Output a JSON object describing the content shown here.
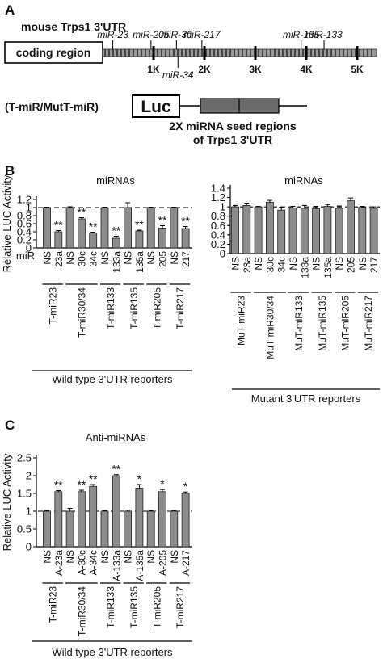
{
  "panel_labels": {
    "a": "A",
    "b": "B",
    "c": "C"
  },
  "schematic": {
    "title": "mouse Trps1 3'UTR",
    "coding_region": "coding region",
    "mirna_sites": [
      {
        "label": "miR-23",
        "pos_kb": 0.2,
        "above": true
      },
      {
        "label": "miR-205",
        "pos_kb": 0.95,
        "above": true
      },
      {
        "label": "miR-30",
        "pos_kb": 1.45,
        "above": true
      },
      {
        "label": "miR-217",
        "pos_kb": 1.95,
        "above": true
      },
      {
        "label": "miR-34",
        "pos_kb": 1.48,
        "above": false
      },
      {
        "label": "miR-135",
        "pos_kb": 3.9,
        "above": true
      },
      {
        "label": "miR-133",
        "pos_kb": 4.35,
        "above": true
      }
    ],
    "kb_ticks": [
      "1K",
      "2K",
      "3K",
      "4K",
      "5K"
    ],
    "construct_label": "(T-miR/MutT-miR)",
    "luc_label": "Luc",
    "seed_caption_1": "2X miRNA seed regions",
    "seed_caption_2": "of Trps1 3'UTR"
  },
  "chart_data": [
    {
      "type": "bar",
      "panel": "B-left",
      "title": "miRNAs",
      "ylabel": "Relative LUC Activity",
      "row_label": "miR",
      "ylim": [
        0,
        1.2
      ],
      "yticks": [
        "0",
        "0.2",
        "0.4",
        "0.6",
        "0.8",
        "1",
        "1.2"
      ],
      "reference_line": 1,
      "categories": [
        "NS",
        "23a",
        "NS",
        "30c",
        "34c",
        "NS",
        "133a",
        "NS",
        "135a",
        "NS",
        "205",
        "NS",
        "217"
      ],
      "values": [
        1.0,
        0.4,
        1.0,
        0.72,
        0.37,
        1.0,
        0.24,
        1.0,
        0.42,
        1.0,
        0.49,
        1.0,
        0.48
      ],
      "errors": [
        0.01,
        0.03,
        0.02,
        0.03,
        0.02,
        0.01,
        0.05,
        0.12,
        0.02,
        0.01,
        0.06,
        0.01,
        0.05
      ],
      "significance": [
        "",
        "**",
        "",
        "**",
        "**",
        "",
        "**",
        "",
        "**",
        "",
        "**",
        "",
        "**"
      ],
      "groups": [
        {
          "label": "T-miR23",
          "span": [
            0,
            1
          ]
        },
        {
          "label": "T-miR30/34",
          "span": [
            2,
            4
          ]
        },
        {
          "label": "T-miR133",
          "span": [
            5,
            6
          ]
        },
        {
          "label": "T-miR135",
          "span": [
            7,
            8
          ]
        },
        {
          "label": "T-miR205",
          "span": [
            9,
            10
          ]
        },
        {
          "label": "T-miR217",
          "span": [
            11,
            12
          ]
        }
      ],
      "footer": "Wild type 3'UTR reporters"
    },
    {
      "type": "bar",
      "panel": "B-right",
      "title": "miRNAs",
      "ylim": [
        0,
        1.4
      ],
      "yticks": [
        "0",
        "0.2",
        "0.4",
        "0.6",
        "0.8",
        "1",
        "1.2",
        "1.4"
      ],
      "reference_line": 1,
      "categories": [
        "NS",
        "23a",
        "NS",
        "30c",
        "34c",
        "NS",
        "133a",
        "NS",
        "135a",
        "NS",
        "205",
        "NS",
        "217"
      ],
      "values": [
        1.0,
        1.03,
        1.0,
        1.1,
        0.93,
        0.98,
        0.97,
        0.96,
        1.01,
        0.97,
        1.13,
        0.99,
        0.97
      ],
      "errors": [
        0.03,
        0.05,
        0.01,
        0.04,
        0.06,
        0.03,
        0.06,
        0.05,
        0.04,
        0.05,
        0.06,
        0.02,
        0.03
      ],
      "groups": [
        {
          "label": "MuT-miR23",
          "span": [
            0,
            1
          ]
        },
        {
          "label": "MuT-miR30/34",
          "span": [
            2,
            4
          ]
        },
        {
          "label": "MuT-miR133",
          "span": [
            5,
            6
          ]
        },
        {
          "label": "MuT-miR135",
          "span": [
            7,
            8
          ]
        },
        {
          "label": "MuT-miR205",
          "span": [
            9,
            10
          ]
        },
        {
          "label": "MuT-miR217",
          "span": [
            11,
            12
          ]
        }
      ],
      "footer": "Mutant 3'UTR reporters"
    },
    {
      "type": "bar",
      "panel": "C",
      "title": "Anti-miRNAs",
      "ylabel": "Relative LUC Activity",
      "ylim": [
        0,
        2.5
      ],
      "yticks": [
        "0",
        "0.5",
        "1",
        "1.5",
        "2",
        "2.5"
      ],
      "reference_line": 1,
      "categories": [
        "NS",
        "A-23a",
        "NS",
        "A-30c",
        "A-34c",
        "NS",
        "A-133a",
        "NS",
        "A-135a",
        "NS",
        "A-205",
        "NS",
        "A-217"
      ],
      "values": [
        1.0,
        1.55,
        1.0,
        1.55,
        1.7,
        1.0,
        2.0,
        1.0,
        1.65,
        1.0,
        1.55,
        1.0,
        1.5
      ],
      "errors": [
        0.02,
        0.03,
        0.08,
        0.04,
        0.05,
        0.02,
        0.03,
        0.03,
        0.1,
        0.02,
        0.06,
        0.02,
        0.04
      ],
      "significance": [
        "",
        "**",
        "",
        "**",
        "**",
        "",
        "**",
        "",
        "*",
        "",
        "*",
        "",
        "*"
      ],
      "groups": [
        {
          "label": "T-miR23",
          "span": [
            0,
            1
          ]
        },
        {
          "label": "T-miR30/34",
          "span": [
            2,
            4
          ]
        },
        {
          "label": "T-miR133",
          "span": [
            5,
            6
          ]
        },
        {
          "label": "T-miR135",
          "span": [
            7,
            8
          ]
        },
        {
          "label": "T-miR205",
          "span": [
            9,
            10
          ]
        },
        {
          "label": "T-miR217",
          "span": [
            11,
            12
          ]
        }
      ],
      "footer": "Wild type 3'UTR reporters"
    }
  ]
}
